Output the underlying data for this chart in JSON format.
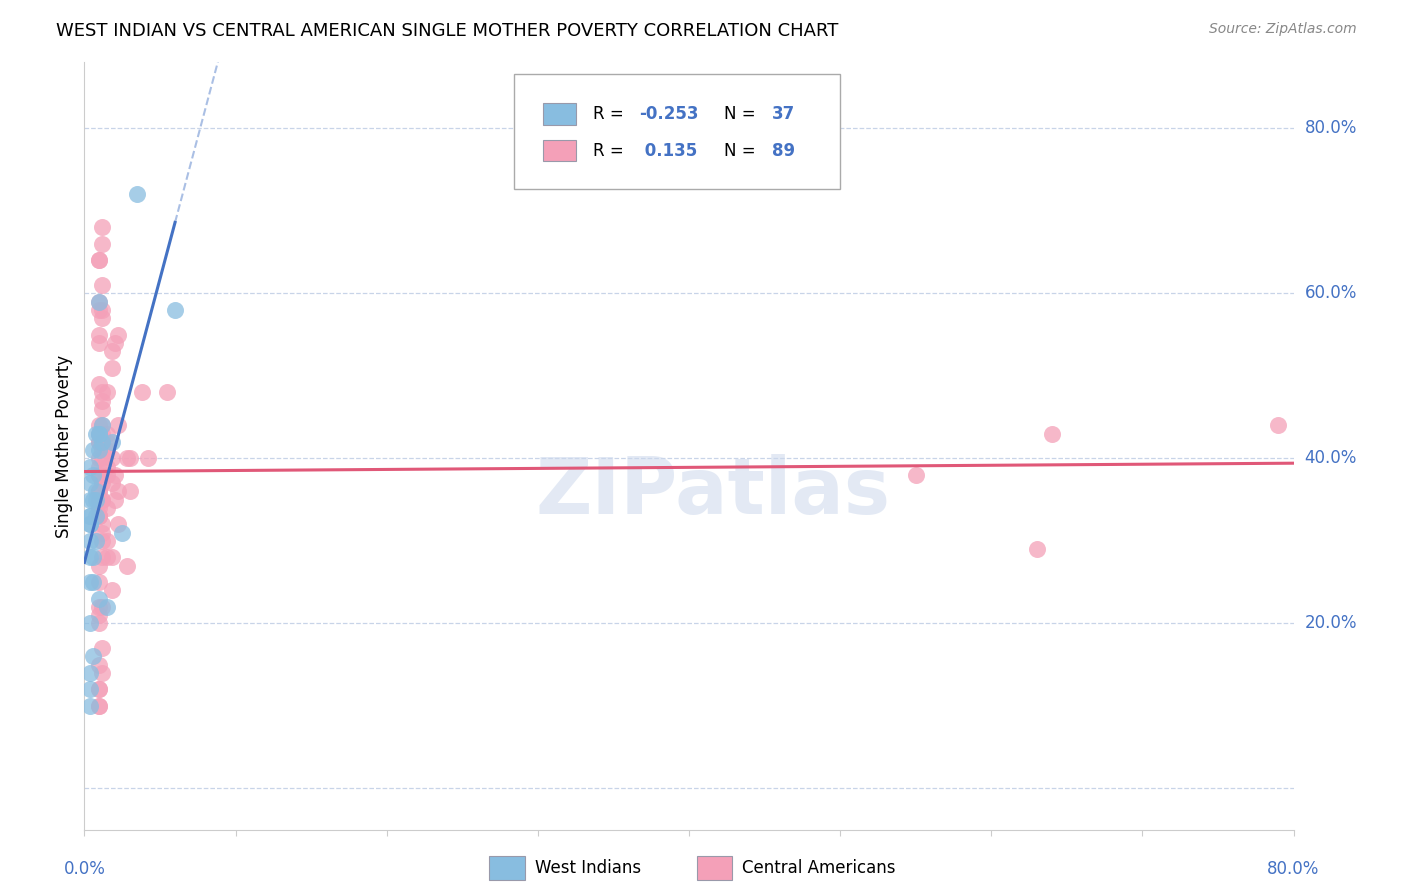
{
  "title": "WEST INDIAN VS CENTRAL AMERICAN SINGLE MOTHER POVERTY CORRELATION CHART",
  "source": "Source: ZipAtlas.com",
  "ylabel": "Single Mother Poverty",
  "watermark": "ZIPatlas",
  "xlim": [
    0.0,
    0.8
  ],
  "ylim": [
    -0.05,
    0.88
  ],
  "ytick_vals": [
    0.0,
    0.2,
    0.4,
    0.6,
    0.8
  ],
  "ytick_labels": [
    "",
    "20.0%",
    "40.0%",
    "60.0%",
    "80.0%"
  ],
  "xtick_vals": [
    0.0,
    0.1,
    0.2,
    0.3,
    0.4,
    0.5,
    0.6,
    0.7,
    0.8
  ],
  "color_blue": "#88bde0",
  "color_pink": "#f4a0b8",
  "color_line_blue": "#4472C4",
  "color_line_pink": "#e05878",
  "color_axis_blue": "#4472C4",
  "color_grid": "#c8d4e8",
  "wi_x": [
    0.01,
    0.012,
    0.008,
    0.006,
    0.01,
    0.004,
    0.006,
    0.004,
    0.008,
    0.012,
    0.006,
    0.025,
    0.008,
    0.004,
    0.006,
    0.01,
    0.018,
    0.01,
    0.004,
    0.004,
    0.008,
    0.004,
    0.035,
    0.004,
    0.008,
    0.006,
    0.004,
    0.06,
    0.004,
    0.01,
    0.015,
    0.004,
    0.006,
    0.004,
    0.004,
    0.004,
    0.004
  ],
  "wi_y": [
    0.43,
    0.44,
    0.43,
    0.41,
    0.41,
    0.39,
    0.38,
    0.37,
    0.36,
    0.42,
    0.35,
    0.31,
    0.3,
    0.33,
    0.28,
    0.59,
    0.42,
    0.43,
    0.35,
    0.32,
    0.35,
    0.25,
    0.72,
    0.3,
    0.33,
    0.25,
    0.2,
    0.58,
    0.28,
    0.23,
    0.22,
    0.14,
    0.16,
    0.12,
    0.1,
    0.33,
    0.32
  ],
  "ca_x": [
    0.01,
    0.012,
    0.012,
    0.01,
    0.015,
    0.01,
    0.01,
    0.03,
    0.012,
    0.015,
    0.01,
    0.018,
    0.012,
    0.01,
    0.015,
    0.022,
    0.01,
    0.01,
    0.012,
    0.01,
    0.018,
    0.012,
    0.01,
    0.028,
    0.01,
    0.03,
    0.012,
    0.012,
    0.022,
    0.038,
    0.015,
    0.02,
    0.02,
    0.015,
    0.01,
    0.012,
    0.01,
    0.022,
    0.01,
    0.01,
    0.012,
    0.012,
    0.01,
    0.018,
    0.01,
    0.015,
    0.012,
    0.01,
    0.015,
    0.042,
    0.012,
    0.01,
    0.015,
    0.018,
    0.012,
    0.02,
    0.01,
    0.022,
    0.055,
    0.01,
    0.018,
    0.01,
    0.01,
    0.012,
    0.01,
    0.012,
    0.01,
    0.012,
    0.012,
    0.012,
    0.012,
    0.012,
    0.018,
    0.028,
    0.012,
    0.015,
    0.01,
    0.55,
    0.63,
    0.64,
    0.01,
    0.01,
    0.01,
    0.01,
    0.01,
    0.012,
    0.01,
    0.01,
    0.79
  ],
  "ca_y": [
    0.42,
    0.44,
    0.42,
    0.4,
    0.42,
    0.38,
    0.33,
    0.4,
    0.43,
    0.39,
    0.39,
    0.4,
    0.37,
    0.36,
    0.43,
    0.36,
    0.36,
    0.38,
    0.4,
    0.33,
    0.37,
    0.35,
    0.34,
    0.4,
    0.43,
    0.36,
    0.41,
    0.35,
    0.44,
    0.48,
    0.34,
    0.35,
    0.38,
    0.38,
    0.33,
    0.32,
    0.35,
    0.32,
    0.27,
    0.25,
    0.31,
    0.3,
    0.22,
    0.28,
    0.21,
    0.28,
    0.28,
    0.35,
    0.3,
    0.4,
    0.46,
    0.49,
    0.48,
    0.53,
    0.47,
    0.54,
    0.42,
    0.55,
    0.48,
    0.55,
    0.51,
    0.58,
    0.54,
    0.61,
    0.64,
    0.66,
    0.64,
    0.68,
    0.57,
    0.48,
    0.17,
    0.14,
    0.24,
    0.27,
    0.22,
    0.41,
    0.12,
    0.38,
    0.29,
    0.43,
    0.44,
    0.2,
    0.15,
    0.1,
    0.59,
    0.58,
    0.12,
    0.1,
    0.44
  ]
}
